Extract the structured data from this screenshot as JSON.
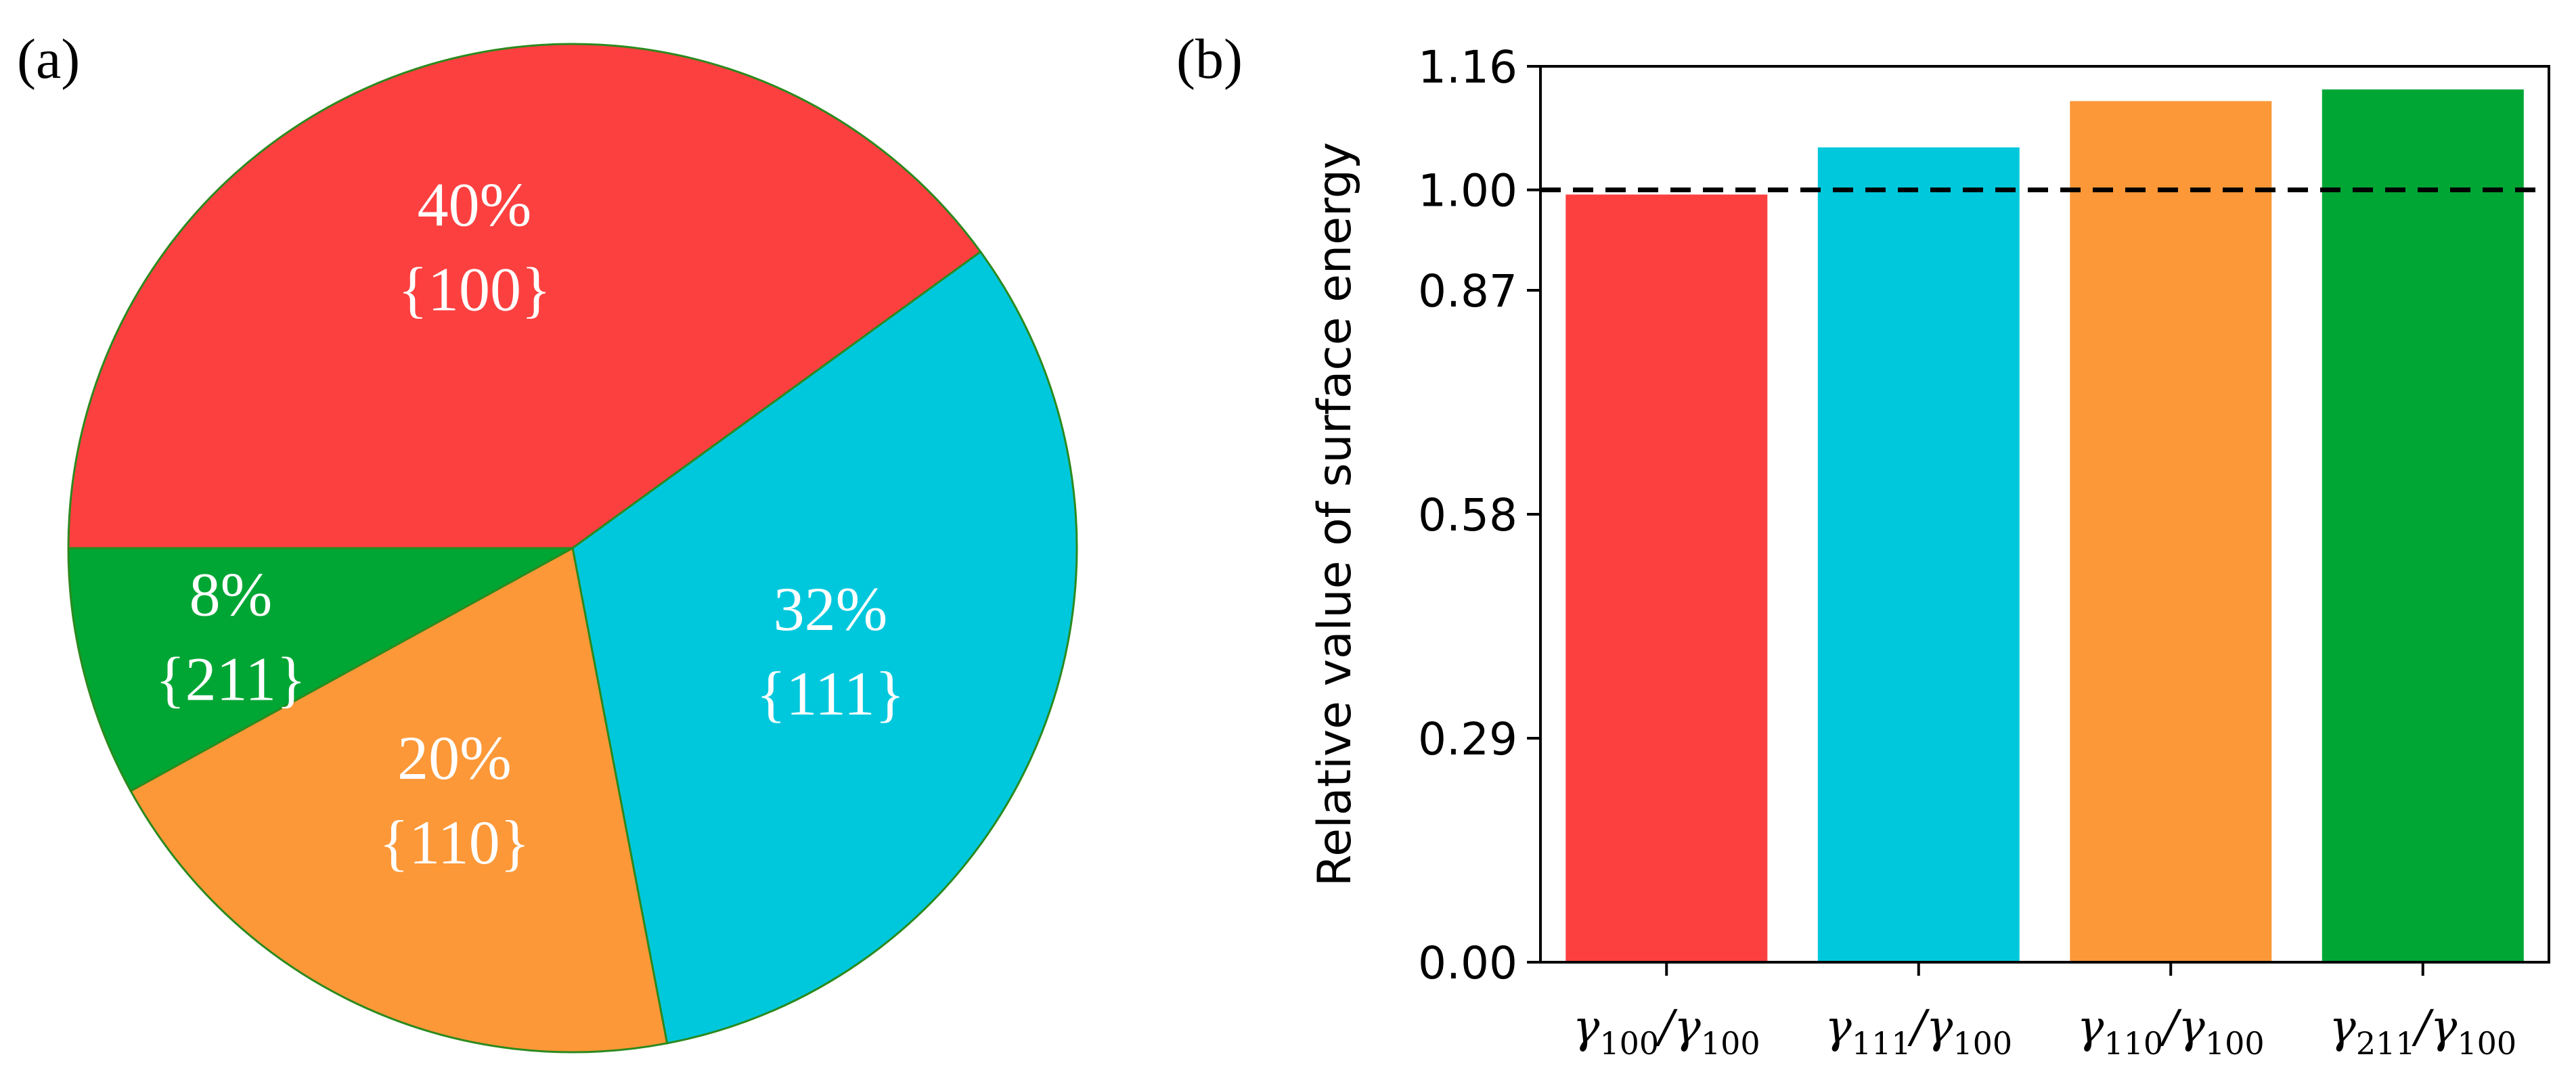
{
  "panels": {
    "a_label": "(a)",
    "b_label": "(b)"
  },
  "chart_data": [
    {
      "type": "pie",
      "panel": "(a)",
      "slices": [
        {
          "name": "{100}",
          "value": 40,
          "percent_label": "40%",
          "facet_label": "{100}",
          "color": "#fc4040"
        },
        {
          "name": "{111}",
          "value": 32,
          "percent_label": "32%",
          "facet_label": "{111}",
          "color": "#00c8dc"
        },
        {
          "name": "{110}",
          "value": 20,
          "percent_label": "20%",
          "facet_label": "{110}",
          "color": "#fc9838"
        },
        {
          "name": "{211}",
          "value": 8,
          "percent_label": "8%",
          "facet_label": "{211}",
          "color": "#00a634"
        }
      ],
      "edge_color": "#2b8a1e"
    },
    {
      "type": "bar",
      "panel": "(b)",
      "ylabel": "Relative value of surface energy",
      "ylim": [
        0,
        1.16
      ],
      "yticks": [
        0.0,
        0.29,
        0.58,
        0.87,
        1.0,
        1.16
      ],
      "ytick_labels": [
        "0.00",
        "0.29",
        "0.58",
        "0.87",
        "1.00",
        "1.16"
      ],
      "reference_line": {
        "value": 1.0,
        "style": "dashed",
        "color": "#000000"
      },
      "categories": [
        {
          "main": "γ",
          "sub1": "100",
          "sep": "/γ",
          "sub2": "100"
        },
        {
          "main": "γ",
          "sub1": "111",
          "sep": "/γ",
          "sub2": "100"
        },
        {
          "main": "γ",
          "sub1": "110",
          "sep": "/γ",
          "sub2": "100"
        },
        {
          "main": "γ",
          "sub1": "211",
          "sep": "/γ",
          "sub2": "100"
        }
      ],
      "values": [
        0.994,
        1.055,
        1.115,
        1.13
      ],
      "colors": [
        "#fc4040",
        "#00c8dc",
        "#fc9838",
        "#00a634"
      ]
    }
  ]
}
